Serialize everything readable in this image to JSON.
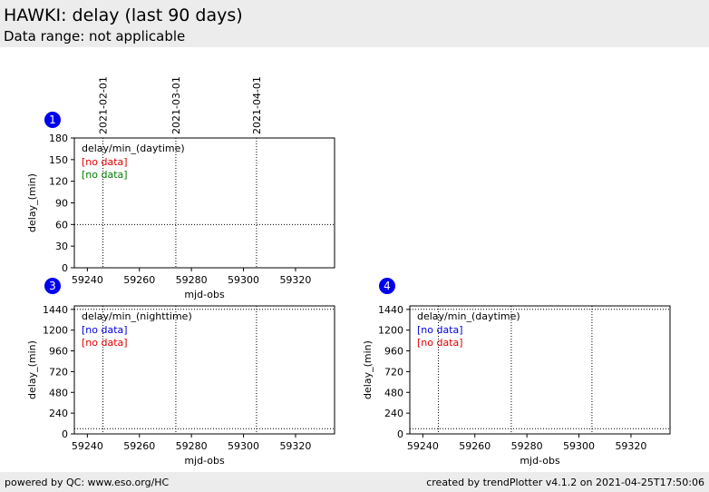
{
  "header": {
    "title": "HAWKI: delay (last 90 days)",
    "subtitle": "Data range: not applicable"
  },
  "footer": {
    "left": "powered by QC: www.eso.org/HC",
    "right": "created by trendPlotter v4.1.2 on 2021-04-25T17:50:06"
  },
  "chart_data": [
    {
      "type": "line",
      "badge": "1",
      "legend_title": "delay/min_(daytime)",
      "xlabel": "mjd-obs",
      "ylabel": "delay_(min)",
      "xlim": [
        59235,
        59335
      ],
      "xticks": [
        59240,
        59260,
        59280,
        59300,
        59320
      ],
      "ylim": [
        0,
        180
      ],
      "yticks": [
        0,
        30,
        60,
        90,
        120,
        150,
        180
      ],
      "ref_lines": [
        60
      ],
      "markers": [
        {
          "value": 59246,
          "label": "2021-02-01"
        },
        {
          "value": 59274,
          "label": "2021-03-01"
        },
        {
          "value": 59305,
          "label": "2021-04-01"
        }
      ],
      "series": [
        {
          "name": "[no data]",
          "color": "#e00000",
          "values": []
        },
        {
          "name": "[no data]",
          "color": "#008000",
          "values": []
        }
      ]
    },
    {
      "type": "line",
      "badge": "3",
      "legend_title": "delay/min_(nighttime)",
      "xlabel": "mjd-obs",
      "ylabel": "delay_(min)",
      "xlim": [
        59235,
        59335
      ],
      "xticks": [
        59240,
        59260,
        59280,
        59300,
        59320
      ],
      "ylim": [
        0,
        1480
      ],
      "yticks": [
        0,
        240,
        480,
        720,
        960,
        1200,
        1440
      ],
      "ref_lines": [
        60,
        1440
      ],
      "markers": [
        59246,
        59274,
        59305
      ],
      "series": [
        {
          "name": "[no data]",
          "color": "#0000e0",
          "values": []
        },
        {
          "name": "[no data]",
          "color": "#e00000",
          "values": []
        }
      ]
    },
    {
      "type": "line",
      "badge": "4",
      "legend_title": "delay/min_(daytime)",
      "xlabel": "mjd-obs",
      "ylabel": "delay_(min)",
      "xlim": [
        59235,
        59335
      ],
      "xticks": [
        59240,
        59260,
        59280,
        59300,
        59320
      ],
      "ylim": [
        0,
        1480
      ],
      "yticks": [
        0,
        240,
        480,
        720,
        960,
        1200,
        1440
      ],
      "ref_lines": [
        60,
        1440
      ],
      "markers": [
        59246,
        59274,
        59305
      ],
      "series": [
        {
          "name": "[no data]",
          "color": "#0000e0",
          "values": []
        },
        {
          "name": "[no data]",
          "color": "#e00000",
          "values": []
        }
      ]
    }
  ]
}
